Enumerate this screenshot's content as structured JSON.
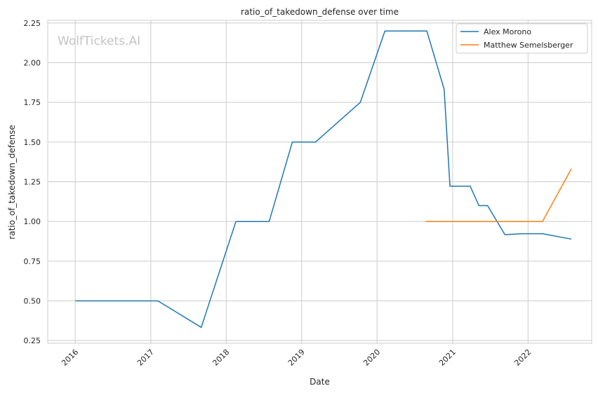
{
  "chart_data": {
    "type": "line",
    "title": "ratio_of_takedown_defense over time",
    "xlabel": "Date",
    "ylabel": "ratio_of_takedown_defense",
    "watermark": "WolfTickets.AI",
    "x_ticks": [
      "2016",
      "2017",
      "2018",
      "2019",
      "2020",
      "2021",
      "2022"
    ],
    "y_ticks": [
      "0.25",
      "0.50",
      "0.75",
      "1.00",
      "1.25",
      "1.50",
      "1.75",
      "2.00",
      "2.25"
    ],
    "xlim": [
      "2015-08-21",
      "2022-11-05"
    ],
    "ylim": [
      0.233,
      2.267
    ],
    "grid": true,
    "legend_position": "top-right",
    "series": [
      {
        "name": "Alex Morono",
        "color": "#1f77b4",
        "points": [
          [
            "2016-01-02",
            0.5
          ],
          [
            "2017-02-04",
            0.5
          ],
          [
            "2017-09-02",
            0.333
          ],
          [
            "2018-02-17",
            1.0
          ],
          [
            "2018-07-28",
            1.0
          ],
          [
            "2018-11-17",
            1.5
          ],
          [
            "2019-03-09",
            1.5
          ],
          [
            "2019-10-12",
            1.75
          ],
          [
            "2020-02-08",
            2.2
          ],
          [
            "2020-08-29",
            2.2
          ],
          [
            "2020-11-21",
            1.833
          ],
          [
            "2020-12-19",
            1.222
          ],
          [
            "2021-03-27",
            1.222
          ],
          [
            "2021-05-08",
            1.1
          ],
          [
            "2021-06-19",
            1.1
          ],
          [
            "2021-09-11",
            0.917
          ],
          [
            "2021-12-04",
            0.923
          ],
          [
            "2022-03-12",
            0.923
          ],
          [
            "2022-07-30",
            0.889
          ]
        ]
      },
      {
        "name": "Matthew Semelsberger",
        "color": "#ff7f0e",
        "points": [
          [
            "2020-08-22",
            1.0
          ],
          [
            "2022-03-12",
            1.0
          ],
          [
            "2022-07-30",
            1.333
          ]
        ]
      }
    ]
  }
}
